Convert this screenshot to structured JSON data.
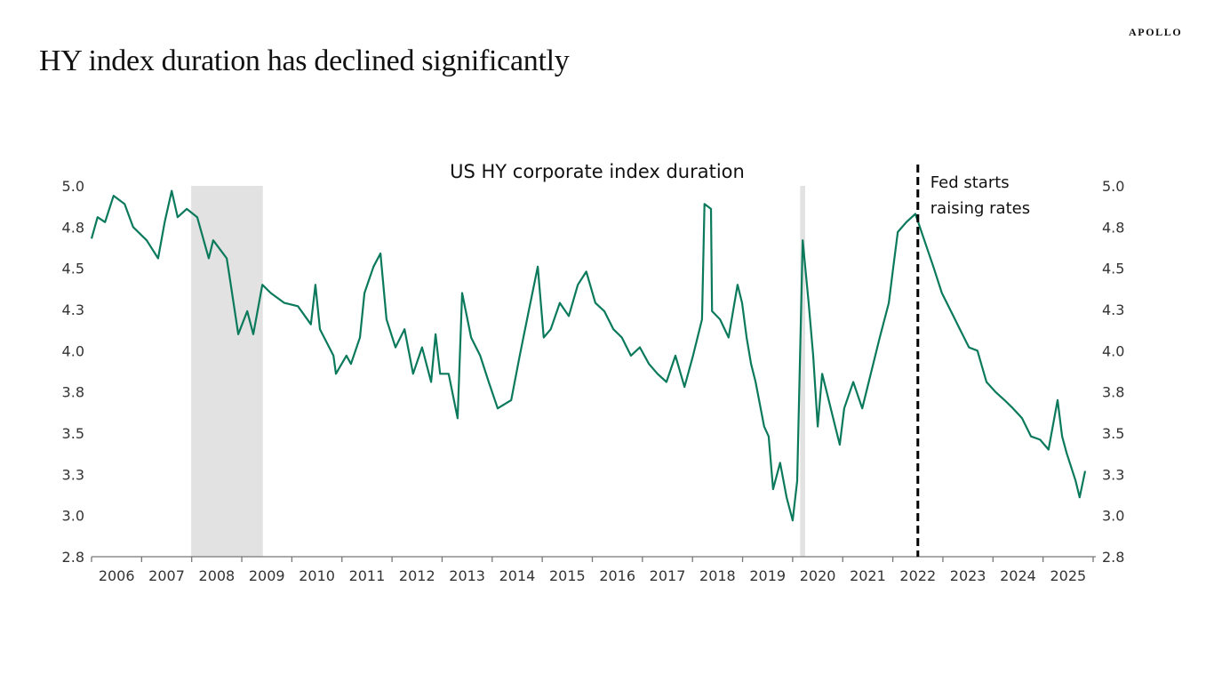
{
  "brand": "APOLLO",
  "page_title": "HY index duration has declined significantly",
  "chart_data": {
    "type": "line",
    "title": "US HY corporate index duration",
    "xlabel": "",
    "ylabel": "",
    "xlim": [
      2006,
      2026
    ],
    "ylim": [
      2.75,
      5.0
    ],
    "y_ticks": [
      2.75,
      3.0,
      3.25,
      3.5,
      3.75,
      4.0,
      4.25,
      4.5,
      4.75,
      5.0
    ],
    "y_tick_labels": [
      "2.8",
      "3.0",
      "3.3",
      "3.5",
      "3.8",
      "4.0",
      "4.3",
      "4.5",
      "4.8",
      "5.0"
    ],
    "x_tick_labels": [
      "2006",
      "2007",
      "2008",
      "2009",
      "2010",
      "2011",
      "2012",
      "2013",
      "2014",
      "2015",
      "2016",
      "2017",
      "2018",
      "2019",
      "2020",
      "2021",
      "2022",
      "2023",
      "2024",
      "2025"
    ],
    "dual_y_axis": true,
    "grid": false,
    "line_color": "#0b7a5c",
    "recession_shading": [
      [
        2007.99,
        2009.42
      ],
      [
        2020.15,
        2020.25
      ]
    ],
    "shading_color": "#e1e2e1",
    "annotation": {
      "x": 2022.5,
      "lines": [
        "Fed starts",
        "raising rates"
      ],
      "style": "dashed-vertical"
    },
    "series": [
      {
        "points": [
          [
            2006.0,
            4.68
          ],
          [
            2006.12,
            4.81
          ],
          [
            2006.27,
            4.78
          ],
          [
            2006.44,
            4.94
          ],
          [
            2006.66,
            4.89
          ],
          [
            2006.83,
            4.75
          ],
          [
            2007.1,
            4.67
          ],
          [
            2007.33,
            4.56
          ],
          [
            2007.46,
            4.78
          ],
          [
            2007.6,
            4.97
          ],
          [
            2007.72,
            4.81
          ],
          [
            2007.9,
            4.86
          ],
          [
            2008.11,
            4.81
          ],
          [
            2008.34,
            4.56
          ],
          [
            2008.43,
            4.67
          ],
          [
            2008.7,
            4.56
          ],
          [
            2008.75,
            4.46
          ],
          [
            2008.93,
            4.1
          ],
          [
            2009.11,
            4.24
          ],
          [
            2009.23,
            4.1
          ],
          [
            2009.41,
            4.4
          ],
          [
            2009.58,
            4.35
          ],
          [
            2009.85,
            4.29
          ],
          [
            2010.12,
            4.27
          ],
          [
            2010.38,
            4.16
          ],
          [
            2010.47,
            4.4
          ],
          [
            2010.56,
            4.13
          ],
          [
            2010.83,
            3.97
          ],
          [
            2010.88,
            3.86
          ],
          [
            2011.09,
            3.97
          ],
          [
            2011.18,
            3.92
          ],
          [
            2011.36,
            4.08
          ],
          [
            2011.45,
            4.35
          ],
          [
            2011.63,
            4.51
          ],
          [
            2011.77,
            4.59
          ],
          [
            2011.89,
            4.19
          ],
          [
            2012.07,
            4.02
          ],
          [
            2012.25,
            4.13
          ],
          [
            2012.42,
            3.86
          ],
          [
            2012.6,
            4.02
          ],
          [
            2012.78,
            3.81
          ],
          [
            2012.87,
            4.1
          ],
          [
            2012.96,
            3.86
          ],
          [
            2013.13,
            3.86
          ],
          [
            2013.31,
            3.59
          ],
          [
            2013.4,
            4.35
          ],
          [
            2013.58,
            4.08
          ],
          [
            2013.76,
            3.97
          ],
          [
            2013.93,
            3.81
          ],
          [
            2014.11,
            3.65
          ],
          [
            2014.38,
            3.7
          ],
          [
            2014.55,
            3.97
          ],
          [
            2014.73,
            4.24
          ],
          [
            2014.91,
            4.51
          ],
          [
            2015.03,
            4.08
          ],
          [
            2015.17,
            4.13
          ],
          [
            2015.35,
            4.29
          ],
          [
            2015.53,
            4.21
          ],
          [
            2015.71,
            4.4
          ],
          [
            2015.88,
            4.48
          ],
          [
            2016.06,
            4.29
          ],
          [
            2016.24,
            4.24
          ],
          [
            2016.42,
            4.13
          ],
          [
            2016.59,
            4.08
          ],
          [
            2016.77,
            3.97
          ],
          [
            2016.95,
            4.02
          ],
          [
            2017.13,
            3.92
          ],
          [
            2017.3,
            3.86
          ],
          [
            2017.48,
            3.81
          ],
          [
            2017.66,
            3.97
          ],
          [
            2017.84,
            3.78
          ],
          [
            2018.01,
            3.97
          ],
          [
            2018.19,
            4.19
          ],
          [
            2018.24,
            4.89
          ],
          [
            2018.37,
            4.86
          ],
          [
            2018.39,
            4.24
          ],
          [
            2018.55,
            4.19
          ],
          [
            2018.72,
            4.08
          ],
          [
            2018.9,
            4.4
          ],
          [
            2018.99,
            4.29
          ],
          [
            2019.08,
            4.08
          ],
          [
            2019.17,
            3.92
          ],
          [
            2019.26,
            3.81
          ],
          [
            2019.43,
            3.54
          ],
          [
            2019.52,
            3.48
          ],
          [
            2019.61,
            3.16
          ],
          [
            2019.75,
            3.32
          ],
          [
            2019.88,
            3.11
          ],
          [
            2020.0,
            2.97
          ],
          [
            2020.09,
            3.21
          ],
          [
            2020.2,
            4.67
          ],
          [
            2020.32,
            4.29
          ],
          [
            2020.41,
            3.97
          ],
          [
            2020.5,
            3.54
          ],
          [
            2020.59,
            3.86
          ],
          [
            2020.68,
            3.75
          ],
          [
            2020.85,
            3.54
          ],
          [
            2020.94,
            3.43
          ],
          [
            2021.03,
            3.65
          ],
          [
            2021.21,
            3.81
          ],
          [
            2021.39,
            3.65
          ],
          [
            2021.56,
            3.86
          ],
          [
            2021.74,
            4.08
          ],
          [
            2021.92,
            4.29
          ],
          [
            2022.01,
            4.51
          ],
          [
            2022.1,
            4.72
          ],
          [
            2022.27,
            4.78
          ],
          [
            2022.45,
            4.83
          ],
          [
            2022.63,
            4.67
          ],
          [
            2022.81,
            4.51
          ],
          [
            2022.98,
            4.35
          ],
          [
            2023.16,
            4.24
          ],
          [
            2023.34,
            4.13
          ],
          [
            2023.52,
            4.02
          ],
          [
            2023.69,
            4.0
          ],
          [
            2023.87,
            3.81
          ],
          [
            2024.05,
            3.75
          ],
          [
            2024.23,
            3.7
          ],
          [
            2024.4,
            3.65
          ],
          [
            2024.58,
            3.59
          ],
          [
            2024.76,
            3.48
          ],
          [
            2024.94,
            3.46
          ],
          [
            2025.11,
            3.4
          ],
          [
            2025.29,
            3.7
          ],
          [
            2025.38,
            3.48
          ],
          [
            2025.47,
            3.38
          ],
          [
            2025.65,
            3.21
          ],
          [
            2025.73,
            3.11
          ],
          [
            2025.84,
            3.27
          ]
        ]
      }
    ]
  }
}
